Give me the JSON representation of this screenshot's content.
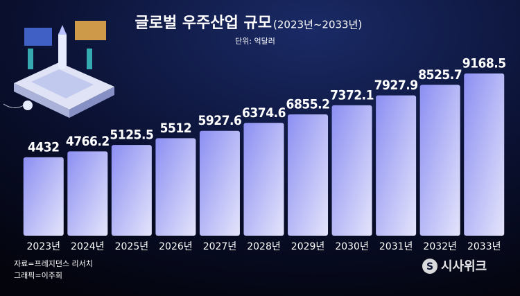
{
  "chart_data": {
    "type": "bar",
    "title": "글로벌 우주산업 규모",
    "subtitle": "(2023년~2033년)",
    "unit": "단위: 억달러",
    "categories": [
      "2023년",
      "2024년",
      "2025년",
      "2026년",
      "2027년",
      "2028년",
      "2029년",
      "2030년",
      "2031년",
      "2032년",
      "2033년"
    ],
    "values": [
      4432,
      4766.2,
      5125.5,
      5512,
      5927.6,
      6374.6,
      6855.2,
      7372.1,
      7927.9,
      8525.7,
      9168.5
    ],
    "color": "#8c8ff2",
    "source": "자료=프레지던스 리서치",
    "credit": "그래픽=이주희",
    "logo": "시사위크"
  }
}
